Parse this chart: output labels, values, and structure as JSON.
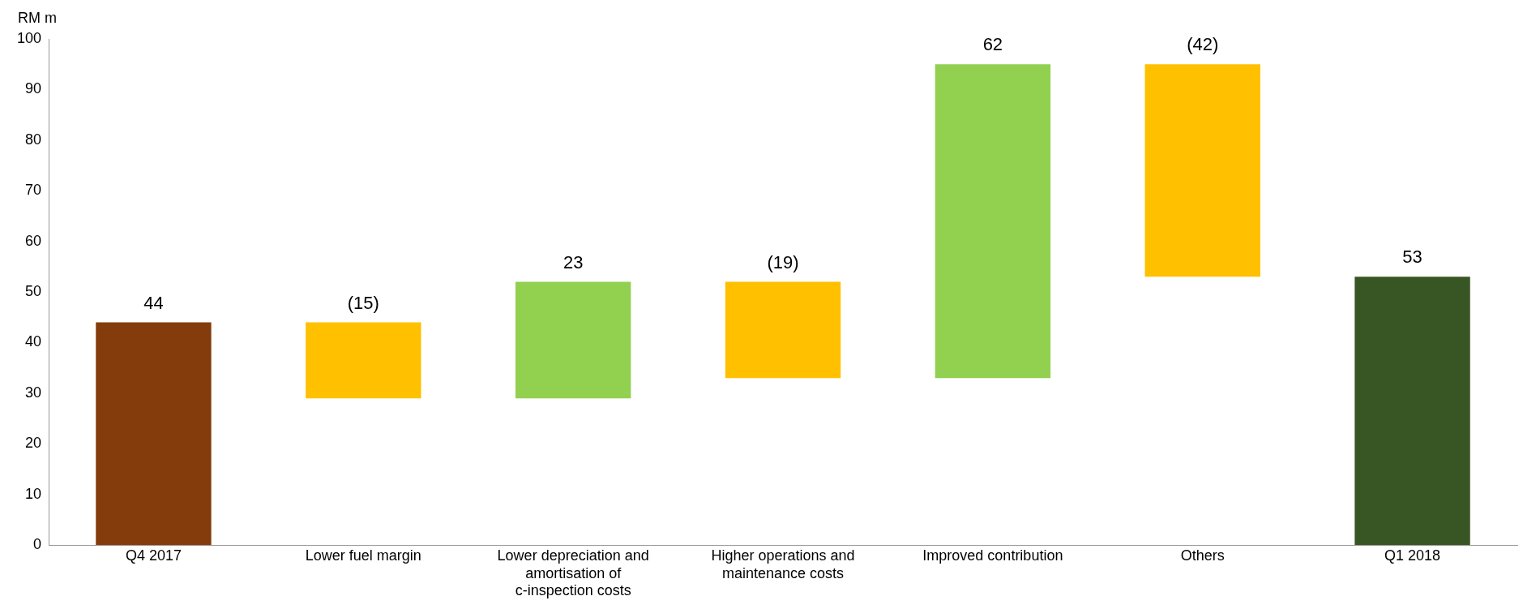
{
  "chart_data": {
    "type": "bar",
    "ylabel": "RM m",
    "categories": [
      "Q4 2017",
      "Lower fuel margin",
      "Lower depreciation and amortisation of c-inspection costs",
      "Higher operations and maintenance costs",
      "Improved contribution",
      "Others",
      "Q1 2018"
    ],
    "base": [
      0,
      44,
      29,
      52,
      33,
      95,
      0
    ],
    "values": [
      44,
      -15,
      23,
      -19,
      62,
      -42,
      53
    ],
    "colors": [
      "#843c0c",
      "#ffc000",
      "#92d050",
      "#ffc000",
      "#92d050",
      "#ffc000",
      "#375623"
    ],
    "value_labels": [
      "44",
      "(15)",
      "23",
      "(19)",
      "62",
      "(42)",
      "53"
    ],
    "ylim": [
      0,
      100
    ],
    "yticks": [
      0,
      10,
      20,
      30,
      40,
      50,
      60,
      70,
      80,
      90,
      100
    ],
    "grid": false,
    "legend": false
  }
}
